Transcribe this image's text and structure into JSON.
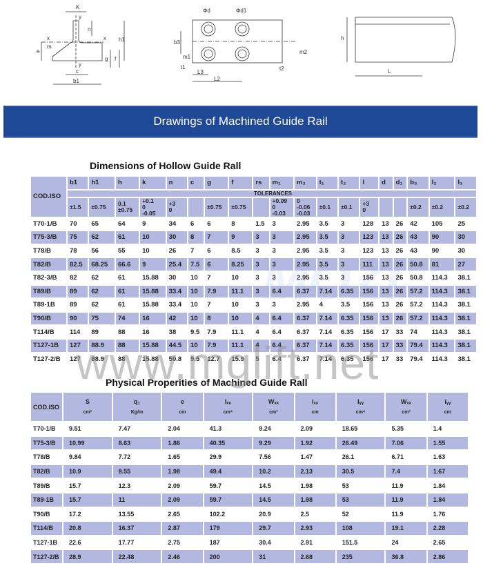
{
  "drawings": {
    "labels1": [
      "K",
      "y",
      "x",
      "x",
      "n",
      "h1",
      "e",
      "rs",
      "g",
      "f",
      "y",
      "c",
      "b1"
    ],
    "labels2": [
      "Φd",
      "Φd1",
      "b3",
      "m1",
      "t1",
      "L3",
      "L2",
      "t2",
      "m2"
    ],
    "labels3": [
      "h",
      "L"
    ]
  },
  "banner": "Drawings of Machined Guide Rail",
  "dimensions": {
    "title": "Dimensions of Hollow Guide Rall",
    "code_header": "COD.ISO",
    "columns": [
      "b1",
      "h1",
      "h",
      "k",
      "n",
      "c",
      "g",
      "f",
      "rs",
      "m₁",
      "m₂",
      "t₁",
      "t₂",
      "l",
      "d",
      "d₁",
      "b₃",
      "l₂",
      "l₃"
    ],
    "tolerances_label": "TOLERANCES",
    "tolerances": [
      "±1.5",
      "±0.75",
      "0.1\n±0.75",
      "+0.1\n0\n-0.05",
      "+3\n0",
      "",
      "±0.75",
      "±0.75",
      "",
      "+0.09\n0\n-0.03",
      "0\n-0.06\n-0.03",
      "±0.1",
      "±0.1",
      "+3\n0",
      "",
      "",
      "±0.2",
      "±0.2",
      "±0.2"
    ],
    "rows": [
      [
        "T70-1/B",
        "70",
        "65",
        "64",
        "9",
        "34",
        "6",
        "6",
        "8",
        "1.5",
        "3",
        "2.95",
        "3.5",
        "3",
        "128",
        "13",
        "26",
        "42",
        "105",
        "25"
      ],
      [
        "T75-3/B",
        "75",
        "62",
        "61",
        "10",
        "30",
        "8",
        "7",
        "9",
        "3",
        "3",
        "2.95",
        "3.5",
        "3",
        "123",
        "13",
        "26",
        "43",
        "90",
        "30"
      ],
      [
        "T78/B",
        "78",
        "56",
        "55",
        "10",
        "26",
        "7",
        "6",
        "8.5",
        "3",
        "3",
        "2.95",
        "3.5",
        "3",
        "123",
        "13",
        "26",
        "43",
        "90",
        "30"
      ],
      [
        "T82/B",
        "82.5",
        "68.25",
        "66.6",
        "9",
        "25.4",
        "7.5",
        "6",
        "8.25",
        "3",
        "3",
        "2.95",
        "3.5",
        "3",
        "111",
        "13",
        "26",
        "50.8",
        "81",
        "27"
      ],
      [
        "T82-3/B",
        "82",
        "62",
        "61",
        "15.88",
        "30",
        "10",
        "7",
        "10",
        "3",
        "3",
        "2.95",
        "3.5",
        "3",
        "156",
        "13",
        "26",
        "50.8",
        "114.3",
        "38.1"
      ],
      [
        "T89/B",
        "89",
        "62",
        "61",
        "15.88",
        "33.4",
        "10",
        "7.9",
        "11.1",
        "3",
        "6.4",
        "6.37",
        "7.14",
        "6.35",
        "156",
        "13",
        "26",
        "57.2",
        "114.3",
        "38.1"
      ],
      [
        "T89-1B",
        "89",
        "62",
        "61",
        "15.88",
        "33.4",
        "10",
        "7",
        "10",
        "3",
        "3",
        "2.95",
        "4",
        "3.5",
        "156",
        "13",
        "26",
        "57.2",
        "114.3",
        "38.1"
      ],
      [
        "T90/B",
        "90",
        "75",
        "74",
        "16",
        "42",
        "10",
        "8",
        "10",
        "4",
        "6.4",
        "6.37",
        "7.14",
        "6.35",
        "156",
        "13",
        "26",
        "57.2",
        "114.3",
        "38.1"
      ],
      [
        "T114/B",
        "114",
        "89",
        "88",
        "16",
        "38",
        "9.5",
        "7.9",
        "11.1",
        "4",
        "6.4",
        "6.37",
        "7.14",
        "6.35",
        "156",
        "17",
        "33",
        "74",
        "114.3",
        "38.1"
      ],
      [
        "T127-1B",
        "127",
        "88.9",
        "88",
        "15.88",
        "44.5",
        "10",
        "7.9",
        "11.1",
        "4",
        "6.4",
        "6.37",
        "7.14",
        "6.35",
        "156",
        "17",
        "33",
        "79.4",
        "114.3",
        "38.1"
      ],
      [
        "T127-2/B",
        "127",
        "88.9",
        "88",
        "15.88",
        "50.8",
        "9.5",
        "12.7",
        "15.9",
        "5",
        "6.4",
        "6.37",
        "7.14",
        "6.35",
        "156",
        "17",
        "33",
        "79.4",
        "114.3",
        "38.1"
      ]
    ]
  },
  "properties": {
    "title": "Physical Properities of Machined Guide Rall",
    "code_header": "COD.ISO",
    "columns": [
      {
        "name": "S",
        "unit": "cm²"
      },
      {
        "name": "q₁",
        "unit": "Kg/m"
      },
      {
        "name": "e",
        "unit": "cm"
      },
      {
        "name": "Iₓₓ",
        "unit": "cm⁴"
      },
      {
        "name": "Wₓₓ",
        "unit": "cm³"
      },
      {
        "name": "iₓₓ",
        "unit": "cm"
      },
      {
        "name": "Iᵧᵧ",
        "unit": "cm⁴"
      },
      {
        "name": "Wₓₓ",
        "unit": "cm³"
      },
      {
        "name": "iᵧᵧ",
        "unit": "cm"
      }
    ],
    "rows": [
      [
        "T70-1/B",
        "9.51",
        "7.47",
        "2.04",
        "41.3",
        "9.24",
        "2.09",
        "18.65",
        "5.35",
        "1.4"
      ],
      [
        "T75-3/B",
        "10.99",
        "8.63",
        "1.86",
        "40.35",
        "9.29",
        "1.92",
        "26.49",
        "7.06",
        "1.55"
      ],
      [
        "T78/B",
        "9.84",
        "7.72",
        "1.65",
        "29.9",
        "7.56",
        "1.47",
        "26.1",
        "6.71",
        "1.63"
      ],
      [
        "T82/B",
        "10.9",
        "8.55",
        "1.98",
        "49.4",
        "10.2",
        "2.13",
        "30.5",
        "7.4",
        "1.67"
      ],
      [
        "T89/B",
        "15.7",
        "12.3",
        "2.09",
        "59.7",
        "14.5",
        "1.98",
        "53",
        "11.9",
        "1.84"
      ],
      [
        "T89-1B",
        "15.7",
        "11",
        "2.09",
        "59.7",
        "14.5",
        "1.98",
        "53",
        "11.9",
        "1.84"
      ],
      [
        "T90/B",
        "17.2",
        "13.55",
        "2.65",
        "102.2",
        "20.9",
        "2.5",
        "52",
        "11.9",
        "1.76"
      ],
      [
        "T114/B",
        "20.8",
        "16.37",
        "2.87",
        "179",
        "29.7",
        "2.93",
        "108",
        "19.1",
        "2.28"
      ],
      [
        "T127-1B",
        "22.6",
        "17.77",
        "2.75",
        "187",
        "30.4",
        "2.91",
        "151.5",
        "24",
        "2.65"
      ],
      [
        "T127-2/B",
        "28.9",
        "22.48",
        "2.46",
        "200",
        "31",
        "2.68",
        "235",
        "36.8",
        "2.86"
      ]
    ]
  },
  "watermark": "www.mglift.net",
  "watermark2": "MOZI",
  "colors": {
    "banner": "#1f4896",
    "row_alt": "#b2b8e0"
  }
}
